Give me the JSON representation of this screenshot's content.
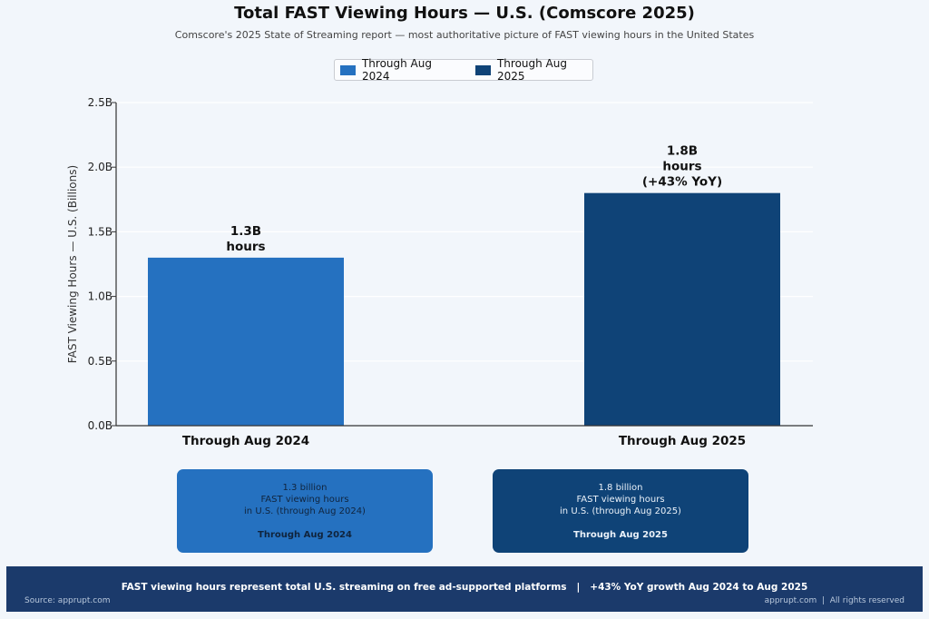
{
  "colors": {
    "series_2024": "#2571c0",
    "series_2025": "#0f4377",
    "footer_bg": "#1b3a6b",
    "background": "#f2f6fb"
  },
  "legend": {
    "items": [
      {
        "label": "Through Aug 2024",
        "color": "#2571c0"
      },
      {
        "label": "Through Aug 2025",
        "color": "#0f4377"
      }
    ]
  },
  "chart_data": {
    "type": "bar",
    "title": "Total FAST Viewing Hours — U.S. (Comscore 2025)",
    "subtitle": "Comscore's 2025 State of Streaming report — most authoritative picture of FAST viewing hours in the United States",
    "ylabel": "FAST Viewing Hours — U.S. (Billions)",
    "xlabel": "",
    "ylim": [
      0,
      2.5
    ],
    "yticks": [
      0,
      0.5,
      1.0,
      1.5,
      2.0,
      2.5
    ],
    "ytick_labels": [
      "0.0B",
      "0.5B",
      "1.0B",
      "1.5B",
      "2.0B",
      "2.5B"
    ],
    "categories": [
      "Through Aug 2024",
      "Through Aug 2025"
    ],
    "values": [
      1.3,
      1.8
    ],
    "data_labels": [
      [
        "1.3B",
        "hours"
      ],
      [
        "1.8B",
        "hours",
        "(+43% YoY)"
      ]
    ],
    "colors": [
      "#2571c0",
      "#0f4377"
    ],
    "grid": "y",
    "legend_position": "top-center"
  },
  "cards": [
    {
      "lines": [
        "1.3 billion",
        "FAST viewing hours",
        "in U.S. (through Aug 2024)"
      ],
      "strong": "Through Aug 2024"
    },
    {
      "lines": [
        "1.8 billion",
        "FAST viewing hours",
        "in U.S. (through Aug 2025)"
      ],
      "strong": "Through Aug 2025"
    }
  ],
  "footer": {
    "main": "FAST viewing hours represent total U.S. streaming on free ad-supported platforms   |   +43% YoY growth Aug 2024 to Aug 2025",
    "source": "Source: apprupt.com",
    "rights": "apprupt.com  |  All rights reserved"
  }
}
